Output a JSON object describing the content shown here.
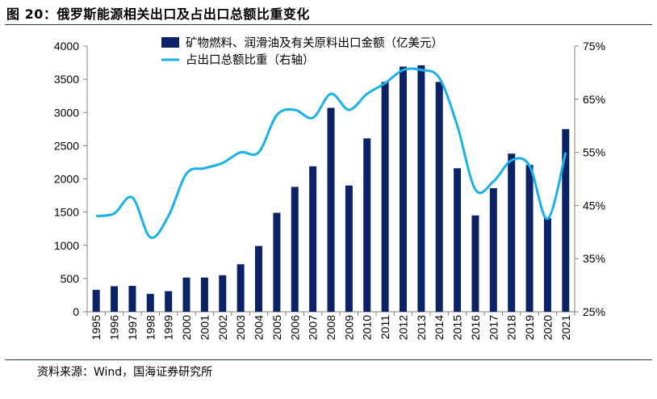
{
  "header": {
    "title": "图 20：俄罗斯能源相关出口及占出口总额比重变化"
  },
  "footer": {
    "source": "资料来源：Wind，国海证券研究所"
  },
  "colors": {
    "bar": "#0c2266",
    "line": "#1ab1e8",
    "rule": "#1f3864",
    "axis": "#808080"
  },
  "chart_data": {
    "type": "bar+line",
    "title": "俄罗斯能源相关出口及占出口总额比重变化",
    "categories": [
      "1995",
      "1996",
      "1997",
      "1998",
      "1999",
      "2000",
      "2001",
      "2002",
      "2003",
      "2004",
      "2005",
      "2006",
      "2007",
      "2008",
      "2009",
      "2010",
      "2011",
      "2012",
      "2013",
      "2014",
      "2015",
      "2016",
      "2017",
      "2018",
      "2019",
      "2020",
      "2021"
    ],
    "series": [
      {
        "name": "矿物燃料、润滑油及有关原料出口金额（亿美元）",
        "type": "bar",
        "axis": "left",
        "values": [
          330,
          385,
          390,
          270,
          310,
          515,
          515,
          550,
          715,
          990,
          1490,
          1880,
          2190,
          3070,
          1900,
          2610,
          3460,
          3690,
          3710,
          3460,
          2160,
          1450,
          1860,
          2380,
          2210,
          1410,
          2750
        ]
      },
      {
        "name": "占出口总额比重（右轴）",
        "type": "line",
        "axis": "right",
        "values": [
          43.0,
          43.5,
          46.5,
          39.0,
          43.0,
          51.0,
          52.0,
          53.0,
          55.0,
          55.0,
          62.0,
          63.0,
          61.5,
          66.0,
          63.0,
          66.0,
          68.0,
          70.5,
          70.5,
          69.0,
          60.0,
          48.0,
          49.5,
          53.5,
          52.5,
          42.5,
          55.0
        ]
      }
    ],
    "y_left": {
      "ylim": [
        0,
        4000
      ],
      "ticks": [
        "0",
        "500",
        "1000",
        "1500",
        "2000",
        "2500",
        "3000",
        "3500",
        "4000"
      ]
    },
    "y_right": {
      "ylim": [
        25,
        75
      ],
      "ticks": [
        "25%",
        "35%",
        "45%",
        "55%",
        "65%",
        "75%"
      ]
    },
    "legend": [
      {
        "label": "矿物燃料、润滑油及有关原料出口金额（亿美元）",
        "symbol": "bar"
      },
      {
        "label": "占出口总额比重（右轴）",
        "symbol": "line"
      }
    ],
    "legend_position": "top-center"
  }
}
